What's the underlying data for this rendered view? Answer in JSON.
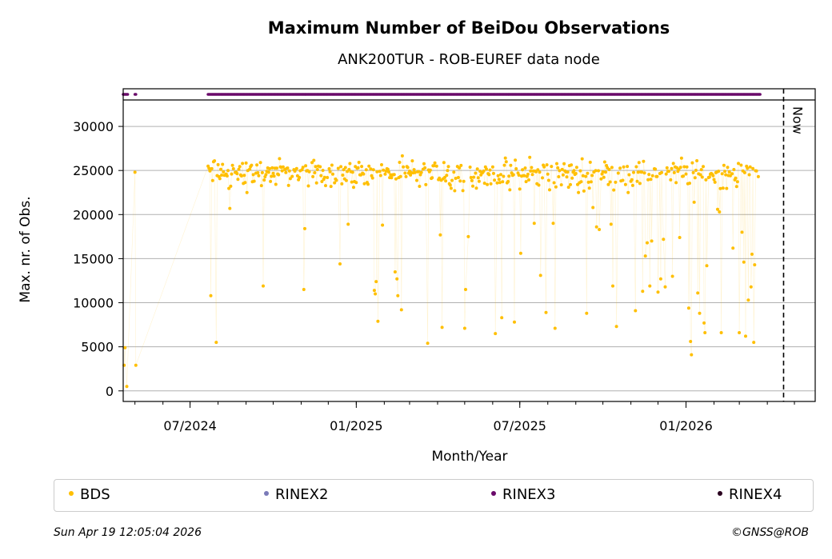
{
  "page": {
    "title": "Maximum Number of BeiDou Observations",
    "subtitle": "ANK200TUR - ROB-EUREF data node",
    "footer_left": "Sun Apr 19 12:05:04 2026",
    "footer_right": "©GNSS@ROB"
  },
  "chart_data": {
    "type": "scatter",
    "title": "Maximum Number of BeiDou Observations",
    "subtitle": "ANK200TUR - ROB-EUREF data node",
    "xlabel": "Month/Year",
    "ylabel": "Max. nr. of Obs.",
    "xlim": [
      "2024-04-18",
      "2026-05-24"
    ],
    "ylim": [
      -1200,
      33000
    ],
    "y_ticks": [
      0,
      5000,
      10000,
      15000,
      20000,
      25000,
      30000
    ],
    "x_ticks": [
      {
        "date": "2024-07-01",
        "label": "07/2024"
      },
      {
        "date": "2025-01-01",
        "label": "01/2025"
      },
      {
        "date": "2025-07-01",
        "label": "07/2025"
      },
      {
        "date": "2026-01-01",
        "label": "01/2026"
      }
    ],
    "grid": "horizontal",
    "now_line": {
      "date": "2026-04-19",
      "label": "Now"
    },
    "legend": [
      {
        "name": "BDS",
        "color": "#ffbf00"
      },
      {
        "name": "RINEX2",
        "color": "#7a7ab8"
      },
      {
        "name": "RINEX3",
        "color": "#6a0a6a"
      },
      {
        "name": "RINEX4",
        "color": "#2a001f"
      }
    ],
    "series": [
      {
        "name": "BDS",
        "color": "#ffbf00",
        "points": [
          [
            "2024-04-19",
            2900
          ],
          [
            "2024-04-20",
            4900
          ],
          [
            "2024-04-22",
            500
          ],
          [
            "2024-05-01",
            24800
          ],
          [
            "2024-05-02",
            2900
          ],
          [
            "2024-07-21",
            25500
          ],
          [
            "2024-07-24",
            10800
          ],
          [
            "2024-07-27",
            26000
          ],
          [
            "2024-07-30",
            5500
          ],
          [
            "2024-08-02",
            24300
          ],
          [
            "2024-08-06",
            25700
          ],
          [
            "2024-08-10",
            24600
          ],
          [
            "2024-08-14",
            20700
          ],
          [
            "2024-08-18",
            25200
          ],
          [
            "2024-08-23",
            24000
          ],
          [
            "2024-08-28",
            25800
          ],
          [
            "2024-09-02",
            22500
          ],
          [
            "2024-09-07",
            25600
          ],
          [
            "2024-09-12",
            24700
          ],
          [
            "2024-09-17",
            25900
          ],
          [
            "2024-09-20",
            11900
          ],
          [
            "2024-09-24",
            24900
          ],
          [
            "2024-09-30",
            25300
          ],
          [
            "2024-10-06",
            24600
          ],
          [
            "2024-10-12",
            25400
          ],
          [
            "2024-10-18",
            23300
          ],
          [
            "2024-10-24",
            25100
          ],
          [
            "2024-10-30",
            24200
          ],
          [
            "2024-11-04",
            11500
          ],
          [
            "2024-11-05",
            18400
          ],
          [
            "2024-11-08",
            25000
          ],
          [
            "2024-11-14",
            24300
          ],
          [
            "2024-11-20",
            25500
          ],
          [
            "2024-11-26",
            24000
          ],
          [
            "2024-12-02",
            25200
          ],
          [
            "2024-12-08",
            23600
          ],
          [
            "2024-12-14",
            14400
          ],
          [
            "2024-12-18",
            25100
          ],
          [
            "2024-12-23",
            18900
          ],
          [
            "2024-12-28",
            24800
          ],
          [
            "2025-01-03",
            25300
          ],
          [
            "2025-01-09",
            24600
          ],
          [
            "2025-01-15",
            25500
          ],
          [
            "2025-01-21",
            11400
          ],
          [
            "2025-01-22",
            11000
          ],
          [
            "2025-01-23",
            12400
          ],
          [
            "2025-01-25",
            7900
          ],
          [
            "2025-01-27",
            24900
          ],
          [
            "2025-01-30",
            18800
          ],
          [
            "2025-02-04",
            25200
          ],
          [
            "2025-02-10",
            24500
          ],
          [
            "2025-02-13",
            13500
          ],
          [
            "2025-02-15",
            12700
          ],
          [
            "2025-02-16",
            10800
          ],
          [
            "2025-02-20",
            9200
          ],
          [
            "2025-02-22",
            25400
          ],
          [
            "2025-02-28",
            24700
          ],
          [
            "2025-03-06",
            25100
          ],
          [
            "2025-03-12",
            23200
          ],
          [
            "2025-03-18",
            25300
          ],
          [
            "2025-03-21",
            5400
          ],
          [
            "2025-03-25",
            24100
          ],
          [
            "2025-03-31",
            25500
          ],
          [
            "2025-04-04",
            17700
          ],
          [
            "2025-04-06",
            7200
          ],
          [
            "2025-04-08",
            25900
          ],
          [
            "2025-04-14",
            23500
          ],
          [
            "2025-04-20",
            22700
          ],
          [
            "2025-04-26",
            23800
          ],
          [
            "2025-05-01",
            7100
          ],
          [
            "2025-05-02",
            11500
          ],
          [
            "2025-05-05",
            17500
          ],
          [
            "2025-05-08",
            24200
          ],
          [
            "2025-05-14",
            23000
          ],
          [
            "2025-05-20",
            24700
          ],
          [
            "2025-05-26",
            23400
          ],
          [
            "2025-06-01",
            25400
          ],
          [
            "2025-06-04",
            6500
          ],
          [
            "2025-06-08",
            24000
          ],
          [
            "2025-06-11",
            8300
          ],
          [
            "2025-06-14",
            25600
          ],
          [
            "2025-06-20",
            22800
          ],
          [
            "2025-06-25",
            7800
          ],
          [
            "2025-06-27",
            25200
          ],
          [
            "2025-07-02",
            15600
          ],
          [
            "2025-07-06",
            24400
          ],
          [
            "2025-07-12",
            26500
          ],
          [
            "2025-07-17",
            19000
          ],
          [
            "2025-07-20",
            23500
          ],
          [
            "2025-07-24",
            13100
          ],
          [
            "2025-07-28",
            25400
          ],
          [
            "2025-07-30",
            8900
          ],
          [
            "2025-08-03",
            22800
          ],
          [
            "2025-08-07",
            19000
          ],
          [
            "2025-08-09",
            7100
          ],
          [
            "2025-08-12",
            25300
          ],
          [
            "2025-08-18",
            24500
          ],
          [
            "2025-08-24",
            23100
          ],
          [
            "2025-08-30",
            25000
          ],
          [
            "2025-09-04",
            22500
          ],
          [
            "2025-09-09",
            24400
          ],
          [
            "2025-09-13",
            8800
          ],
          [
            "2025-09-16",
            23000
          ],
          [
            "2025-09-20",
            20800
          ],
          [
            "2025-09-24",
            18600
          ],
          [
            "2025-09-27",
            18300
          ],
          [
            "2025-09-30",
            24600
          ],
          [
            "2025-10-06",
            25300
          ],
          [
            "2025-10-10",
            18900
          ],
          [
            "2025-10-12",
            11900
          ],
          [
            "2025-10-16",
            7300
          ],
          [
            "2025-10-18",
            24700
          ],
          [
            "2025-10-24",
            25400
          ],
          [
            "2025-10-29",
            22500
          ],
          [
            "2025-11-03",
            23300
          ],
          [
            "2025-11-06",
            9100
          ],
          [
            "2025-11-09",
            24800
          ],
          [
            "2025-11-14",
            11300
          ],
          [
            "2025-11-17",
            15300
          ],
          [
            "2025-11-19",
            16800
          ],
          [
            "2025-11-22",
            11900
          ],
          [
            "2025-11-24",
            17000
          ],
          [
            "2025-11-27",
            25200
          ],
          [
            "2025-12-01",
            11200
          ],
          [
            "2025-12-04",
            12700
          ],
          [
            "2025-12-07",
            17200
          ],
          [
            "2025-12-09",
            11800
          ],
          [
            "2025-12-12",
            24900
          ],
          [
            "2025-12-17",
            13000
          ],
          [
            "2025-12-20",
            25400
          ],
          [
            "2025-12-25",
            17400
          ],
          [
            "2025-12-27",
            26400
          ],
          [
            "2026-01-01",
            24600
          ],
          [
            "2026-01-04",
            9400
          ],
          [
            "2026-01-06",
            5600
          ],
          [
            "2026-01-07",
            4100
          ],
          [
            "2026-01-10",
            21400
          ],
          [
            "2026-01-14",
            11100
          ],
          [
            "2026-01-16",
            8800
          ],
          [
            "2026-01-18",
            25100
          ],
          [
            "2026-01-21",
            7700
          ],
          [
            "2026-01-22",
            6600
          ],
          [
            "2026-01-24",
            14200
          ],
          [
            "2026-01-26",
            24200
          ],
          [
            "2026-02-05",
            20600
          ],
          [
            "2026-02-07",
            20300
          ],
          [
            "2026-02-09",
            6600
          ],
          [
            "2026-02-22",
            16200
          ],
          [
            "2026-03-01",
            6600
          ],
          [
            "2026-03-04",
            18000
          ],
          [
            "2026-03-06",
            14600
          ],
          [
            "2026-03-08",
            6200
          ],
          [
            "2026-03-11",
            10300
          ],
          [
            "2026-03-13",
            25400
          ],
          [
            "2026-03-15",
            15500
          ],
          [
            "2026-03-14",
            11800
          ],
          [
            "2026-03-18",
            14300
          ],
          [
            "2026-03-17",
            5500
          ],
          [
            "2026-03-22",
            24300
          ]
        ],
        "dense_band": {
          "mean": 24600,
          "spread": 1300,
          "start": "2024-07-21",
          "end": "2026-03-22"
        },
        "gap": [
          "2024-05-03",
          "2024-07-20"
        ]
      },
      {
        "name": "RINEX3",
        "color": "#6a0a6a",
        "availability": [
          [
            "2024-04-18",
            "2024-04-23"
          ],
          [
            "2024-05-01",
            "2024-05-02"
          ],
          [
            "2024-07-21",
            "2026-03-24"
          ]
        ]
      }
    ]
  }
}
